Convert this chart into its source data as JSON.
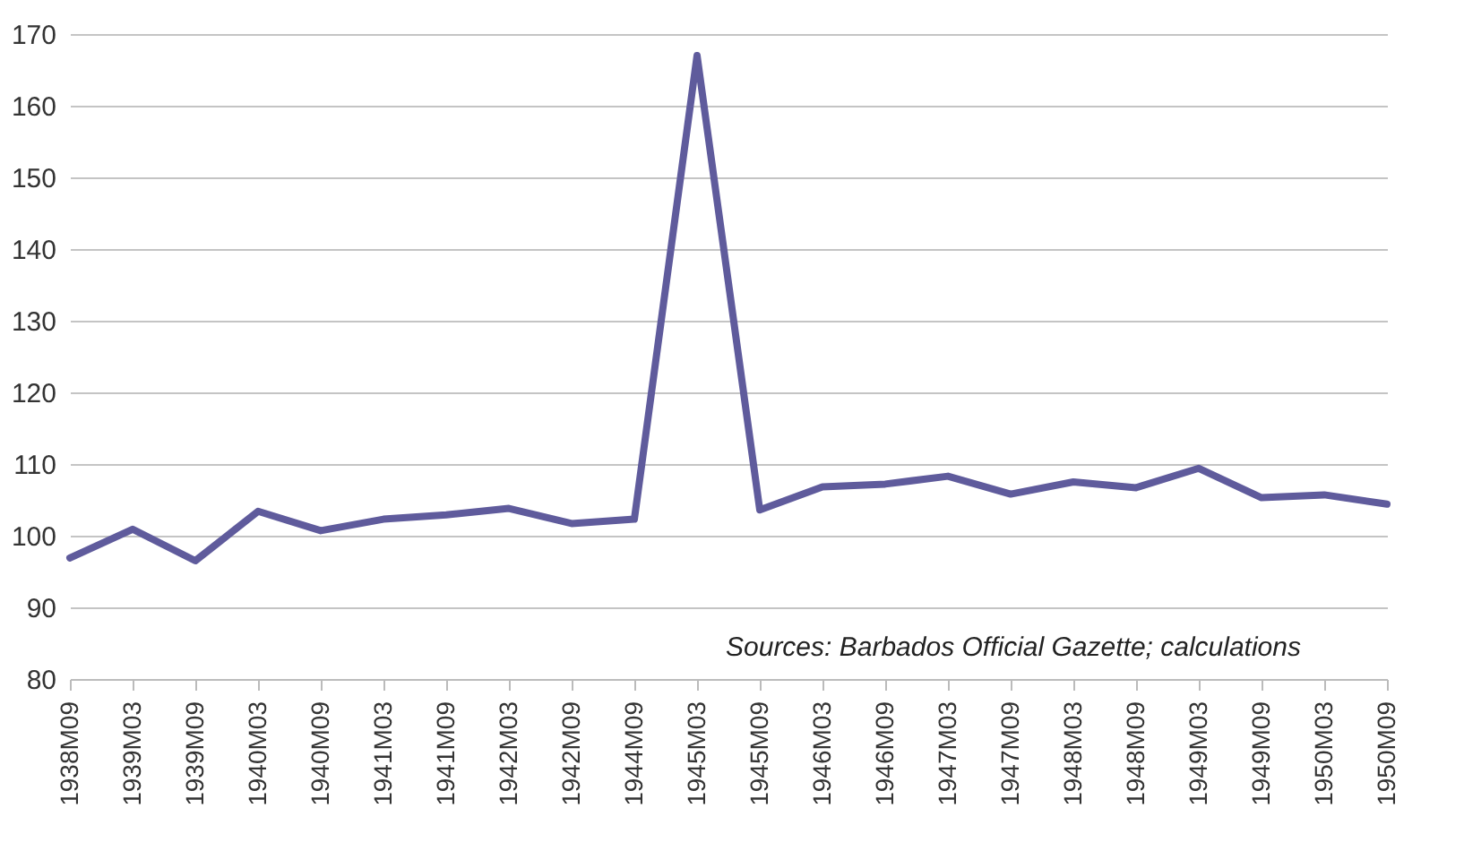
{
  "chart_data": {
    "type": "line",
    "categories": [
      "1938M09",
      "1939M03",
      "1939M09",
      "1940M03",
      "1940M09",
      "1941M03",
      "1941M09",
      "1942M03",
      "1942M09",
      "1944M09",
      "1945M03",
      "1945M09",
      "1946M03",
      "1946M09",
      "1947M03",
      "1947M09",
      "1948M03",
      "1948M09",
      "1949M03",
      "1949M09",
      "1950M03",
      "1950M09"
    ],
    "series": [
      {
        "color": "#5f5b9c",
        "values": [
          96.9,
          100.9,
          96.5,
          103.4,
          100.7,
          102.3,
          102.9,
          103.8,
          101.7,
          102.3,
          167,
          103.6,
          106.8,
          107.2,
          108.3,
          105.8,
          107.5,
          106.7,
          109.4,
          105.3,
          105.7,
          104.4
        ]
      }
    ],
    "ylim": [
      80,
      170
    ],
    "yticks": [
      80,
      90,
      100,
      110,
      120,
      130,
      140,
      150,
      160,
      170
    ],
    "grid": "y",
    "marker": "none",
    "line_style": "solid",
    "annotations": [
      "Sources: Barbados Official Gazette; calculations"
    ]
  }
}
